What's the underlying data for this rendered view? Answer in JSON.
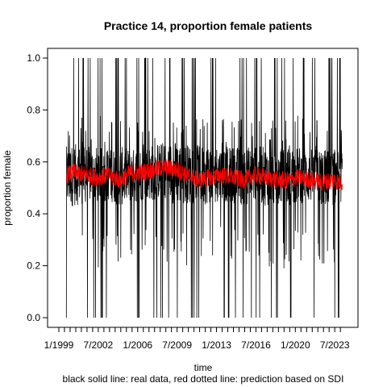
{
  "chart_data": {
    "type": "line",
    "title": "Practice 14, proportion female patients",
    "xlabel": "time",
    "ylabel": "proportion female",
    "caption": "black solid line: real data, red dotted line: prediction based on SDI",
    "ylim": [
      0,
      1
    ],
    "xlim": [
      "1999-01",
      "2024-06"
    ],
    "y_ticks": [
      "0.0",
      "0.2",
      "0.4",
      "0.6",
      "0.8",
      "1.0"
    ],
    "x_tick_labels": [
      "1/1999",
      "7/2002",
      "1/2006",
      "7/2009",
      "1/2013",
      "7/2016",
      "1/2020",
      "7/2023"
    ],
    "x_tick_dates": [
      "1999-01",
      "2002-07",
      "2006-01",
      "2009-07",
      "2013-01",
      "2016-07",
      "2020-01",
      "2023-07"
    ],
    "grid": false,
    "legend": "none",
    "series": [
      {
        "color": "#000000",
        "style": "solid",
        "x": [
          "1999-09",
          "2000-06",
          "2001-06",
          "2002-06",
          "2003-06",
          "2004-06",
          "2005-06",
          "2006-06",
          "2007-06",
          "2008-06",
          "2009-06",
          "2010-06",
          "2011-06",
          "2012-06",
          "2013-06",
          "2014-06",
          "2015-06",
          "2016-06",
          "2017-06",
          "2018-06",
          "2019-06",
          "2020-06",
          "2021-06",
          "2022-06",
          "2023-06",
          "2024-03"
        ],
        "typical_range_low": [
          0.42,
          0.43,
          0.44,
          0.44,
          0.45,
          0.43,
          0.44,
          0.45,
          0.45,
          0.46,
          0.43,
          0.44,
          0.43,
          0.44,
          0.45,
          0.44,
          0.43,
          0.44,
          0.43,
          0.44,
          0.43,
          0.44,
          0.44,
          0.43,
          0.43,
          0.44
        ],
        "typical_range_high": [
          0.66,
          0.67,
          0.66,
          0.66,
          0.65,
          0.66,
          0.65,
          0.66,
          0.67,
          0.68,
          0.68,
          0.67,
          0.66,
          0.67,
          0.66,
          0.66,
          0.66,
          0.66,
          0.66,
          0.65,
          0.66,
          0.66,
          0.65,
          0.65,
          0.65,
          0.64
        ],
        "spike_values": [
          0.0,
          1.0
        ],
        "spike_dates": [
          "1999-09",
          "2001-03",
          "2002-11",
          "2004-04",
          "2006-02",
          "2007-05",
          "2008-10",
          "2010-01",
          "2011-06",
          "2012-09",
          "2014-02",
          "2015-04",
          "2016-11",
          "2018-03",
          "2019-08",
          "2020-10",
          "2021-09",
          "2023-01",
          "2023-11"
        ]
      },
      {
        "color": "#ff0000",
        "style": "dotted",
        "x": [
          "1999-09",
          "2000-06",
          "2001-06",
          "2002-06",
          "2003-06",
          "2004-06",
          "2005-06",
          "2006-06",
          "2007-06",
          "2008-06",
          "2009-06",
          "2010-06",
          "2011-06",
          "2012-06",
          "2013-06",
          "2014-06",
          "2015-06",
          "2016-06",
          "2017-06",
          "2018-06",
          "2019-06",
          "2020-06",
          "2021-06",
          "2022-06",
          "2023-06",
          "2024-03"
        ],
        "values": [
          0.55,
          0.56,
          0.55,
          0.54,
          0.55,
          0.53,
          0.56,
          0.56,
          0.57,
          0.58,
          0.57,
          0.55,
          0.53,
          0.54,
          0.55,
          0.54,
          0.53,
          0.55,
          0.54,
          0.53,
          0.53,
          0.54,
          0.53,
          0.52,
          0.53,
          0.52
        ]
      }
    ]
  }
}
